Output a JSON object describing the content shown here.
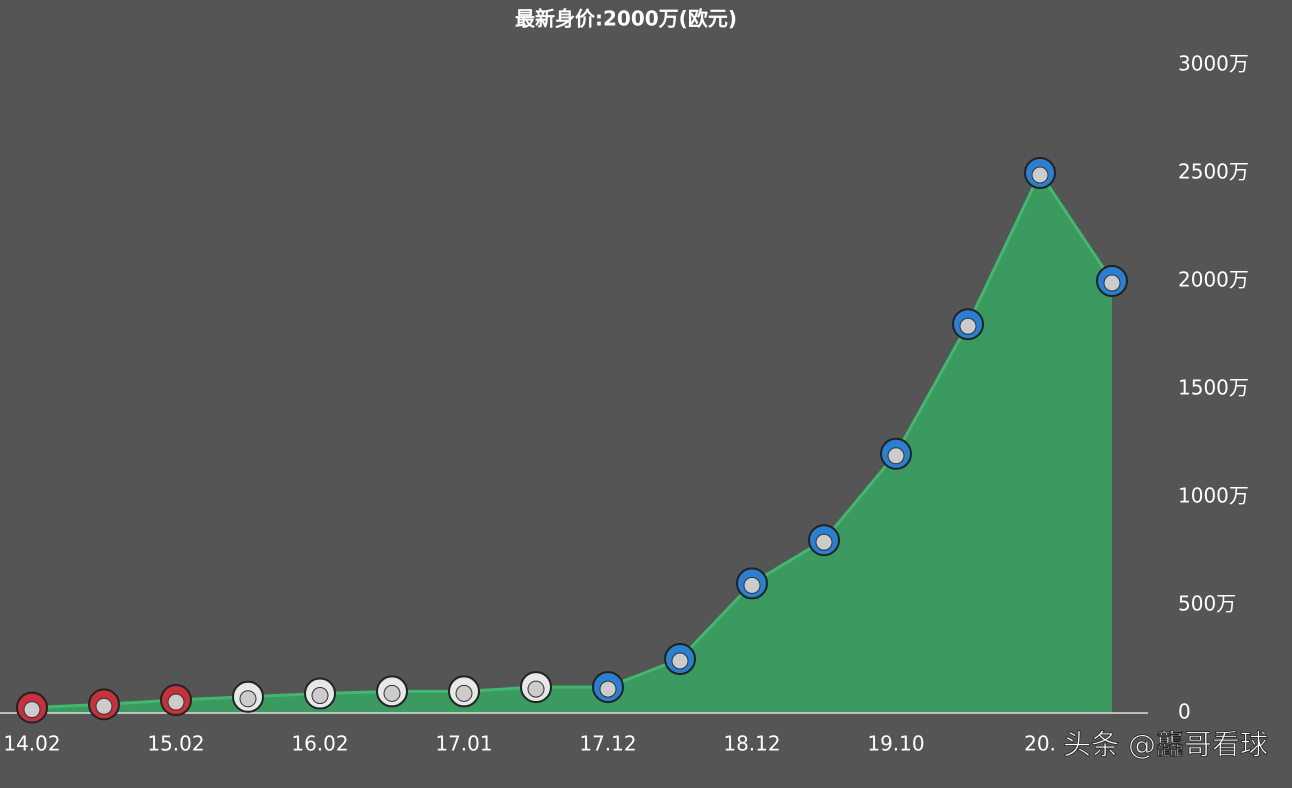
{
  "chart_data": {
    "type": "area",
    "title": "最新身价:2000万(欧元)",
    "categories": [
      "14.02",
      null,
      "15.02",
      null,
      "16.02",
      null,
      "17.01",
      null,
      "17.12",
      null,
      "18.12",
      null,
      "19.10",
      null,
      "20.",
      null
    ],
    "series": [
      {
        "color": "#3a9a60",
        "values": [
          25,
          40,
          60,
          75,
          90,
          100,
          100,
          120,
          120,
          250,
          600,
          800,
          1200,
          1800,
          2500,
          2000
        ]
      }
    ],
    "marker_colors": [
      "#c8313b",
      "#c8313b",
      "#c8313b",
      "#e8e8e8",
      "#e8e8e8",
      "#e8e8e8",
      "#e8e8e8",
      "#e8e8e8",
      "#2a7fd0",
      "#2a7fd0",
      "#2a7fd0",
      "#2a7fd0",
      "#2a7fd0",
      "#2a7fd0",
      "#2a7fd0",
      "#2a7fd0"
    ],
    "ylim": [
      0,
      3000
    ],
    "yticks": [
      0,
      {
        "value": 500,
        "label": "500万"
      },
      {
        "value": 1000,
        "label": "1000万"
      },
      {
        "value": 1500,
        "label": "1500万"
      },
      {
        "value": 2000,
        "label": "2000万"
      },
      {
        "value": 2500,
        "label": "2500万"
      },
      {
        "value": 3000,
        "label": "3000万"
      }
    ],
    "watermark": "头条 @龘哥看球"
  }
}
